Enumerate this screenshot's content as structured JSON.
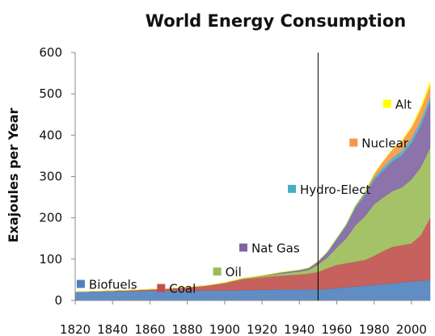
{
  "chart_data": {
    "type": "area",
    "stacked": true,
    "title": "World Energy Consumption",
    "xlabel": "",
    "ylabel": "Exajoules per Year",
    "xlim": [
      1820,
      2010
    ],
    "ylim": [
      0,
      600
    ],
    "yticks": [
      0,
      100,
      200,
      300,
      400,
      500,
      600
    ],
    "xticks": [
      1820,
      1840,
      1860,
      1880,
      1900,
      1920,
      1940,
      1960,
      1980,
      2000
    ],
    "grid": false,
    "reference_line_x": 1950,
    "x": [
      1820,
      1850,
      1870,
      1890,
      1900,
      1910,
      1920,
      1930,
      1940,
      1945,
      1950,
      1955,
      1960,
      1965,
      1970,
      1975,
      1980,
      1985,
      1990,
      1995,
      2000,
      2005,
      2010
    ],
    "series": [
      {
        "name": "Biofuels",
        "color": "#4f81bd",
        "values": [
          21,
          23,
          24,
          24,
          24,
          25,
          26,
          27,
          27,
          27,
          27,
          28,
          30,
          32,
          34,
          36,
          38,
          40,
          42,
          44,
          46,
          48,
          50
        ]
      },
      {
        "name": "Coal",
        "color": "#c0504d",
        "values": [
          0,
          2,
          5,
          12,
          18,
          27,
          30,
          33,
          36,
          38,
          42,
          50,
          56,
          58,
          60,
          62,
          70,
          80,
          88,
          90,
          92,
          110,
          150
        ]
      },
      {
        "name": "Oil",
        "color": "#9bbb59",
        "values": [
          0,
          0,
          0,
          0,
          1,
          2,
          3,
          5,
          7,
          9,
          18,
          26,
          42,
          60,
          88,
          105,
          125,
          130,
          135,
          140,
          155,
          165,
          170
        ]
      },
      {
        "name": "Nat Gas",
        "color": "#8064a2",
        "values": [
          0,
          0,
          0,
          0,
          0,
          0,
          1,
          2,
          3,
          4,
          7,
          12,
          20,
          30,
          42,
          50,
          58,
          65,
          72,
          78,
          88,
          100,
          110
        ]
      },
      {
        "name": "Hydro-Elect",
        "color": "#4bacc6",
        "values": [
          0,
          0,
          0,
          0,
          0,
          0,
          0,
          1,
          1,
          1,
          1,
          2,
          3,
          4,
          5,
          6,
          7,
          8,
          9,
          10,
          11,
          12,
          13
        ]
      },
      {
        "name": "Nuclear",
        "color": "#f79646",
        "values": [
          0,
          0,
          0,
          0,
          0,
          0,
          0,
          0,
          0,
          0,
          0,
          0,
          0,
          0,
          1,
          3,
          8,
          15,
          20,
          24,
          26,
          28,
          28
        ]
      },
      {
        "name": "Alt",
        "color": "#ffff00",
        "values": [
          0,
          0,
          0,
          0,
          0,
          0,
          0,
          0,
          0,
          0,
          0,
          0,
          0,
          0,
          0,
          0,
          0,
          0,
          1,
          2,
          3,
          5,
          10
        ]
      }
    ]
  }
}
